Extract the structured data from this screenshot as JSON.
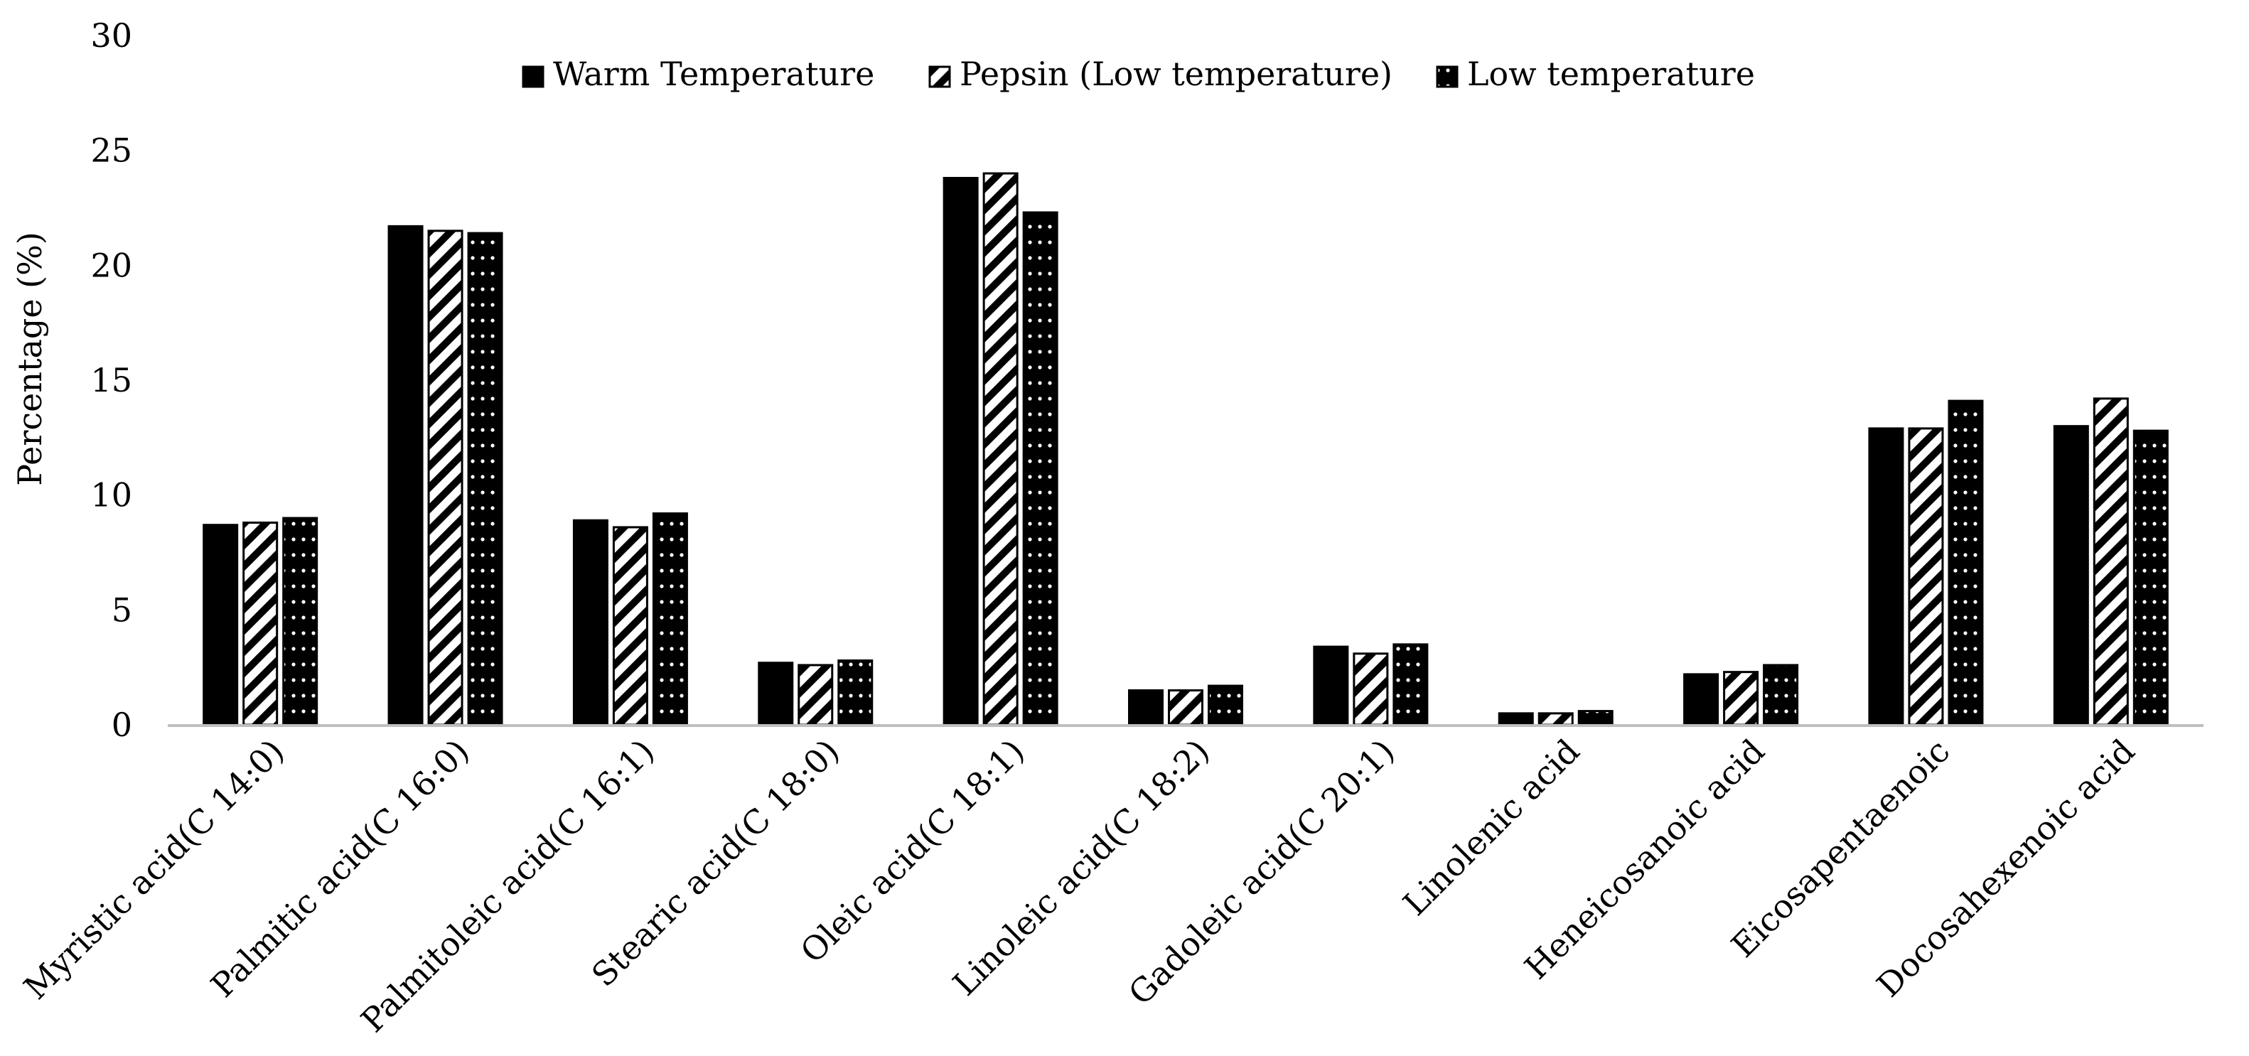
{
  "chart_data": {
    "type": "bar",
    "title": "",
    "xlabel": "",
    "ylabel": "Percentage (%)",
    "ylim": [
      0,
      30
    ],
    "yticks": [
      0,
      5,
      10,
      15,
      20,
      25,
      30
    ],
    "grid": false,
    "legend_position": "top-center",
    "categories": [
      "Myristic acid(C 14:0)",
      "Palmitic acid(C 16:0)",
      "Palmitoleic acid(C 16:1)",
      "Stearic acid(C 18:0)",
      "Oleic acid(C 18:1)",
      "Linoleic acid(C 18:2)",
      "Gadoleic acid(C 20:1)",
      "Linolenic acid",
      "Heneicosanoic acid",
      "Eicosapentaenoic",
      "Docosahexenoic acid"
    ],
    "series": [
      {
        "name": "Warm Temperature",
        "pattern": "solid",
        "values": [
          8.7,
          21.7,
          8.9,
          2.7,
          23.8,
          1.5,
          3.4,
          0.5,
          2.2,
          12.9,
          13.0
        ]
      },
      {
        "name": "Pepsin (Low temperature)",
        "pattern": "diagonal",
        "values": [
          8.8,
          21.5,
          8.6,
          2.6,
          24.0,
          1.5,
          3.1,
          0.5,
          2.3,
          12.9,
          14.2
        ]
      },
      {
        "name": "Low temperature",
        "pattern": "dotted",
        "values": [
          9.0,
          21.4,
          9.2,
          2.8,
          22.3,
          1.7,
          3.5,
          0.6,
          2.6,
          14.1,
          12.8
        ]
      }
    ]
  },
  "colors": {
    "bar": "#000000",
    "axis": "#bfbfbf",
    "background": "#ffffff"
  }
}
